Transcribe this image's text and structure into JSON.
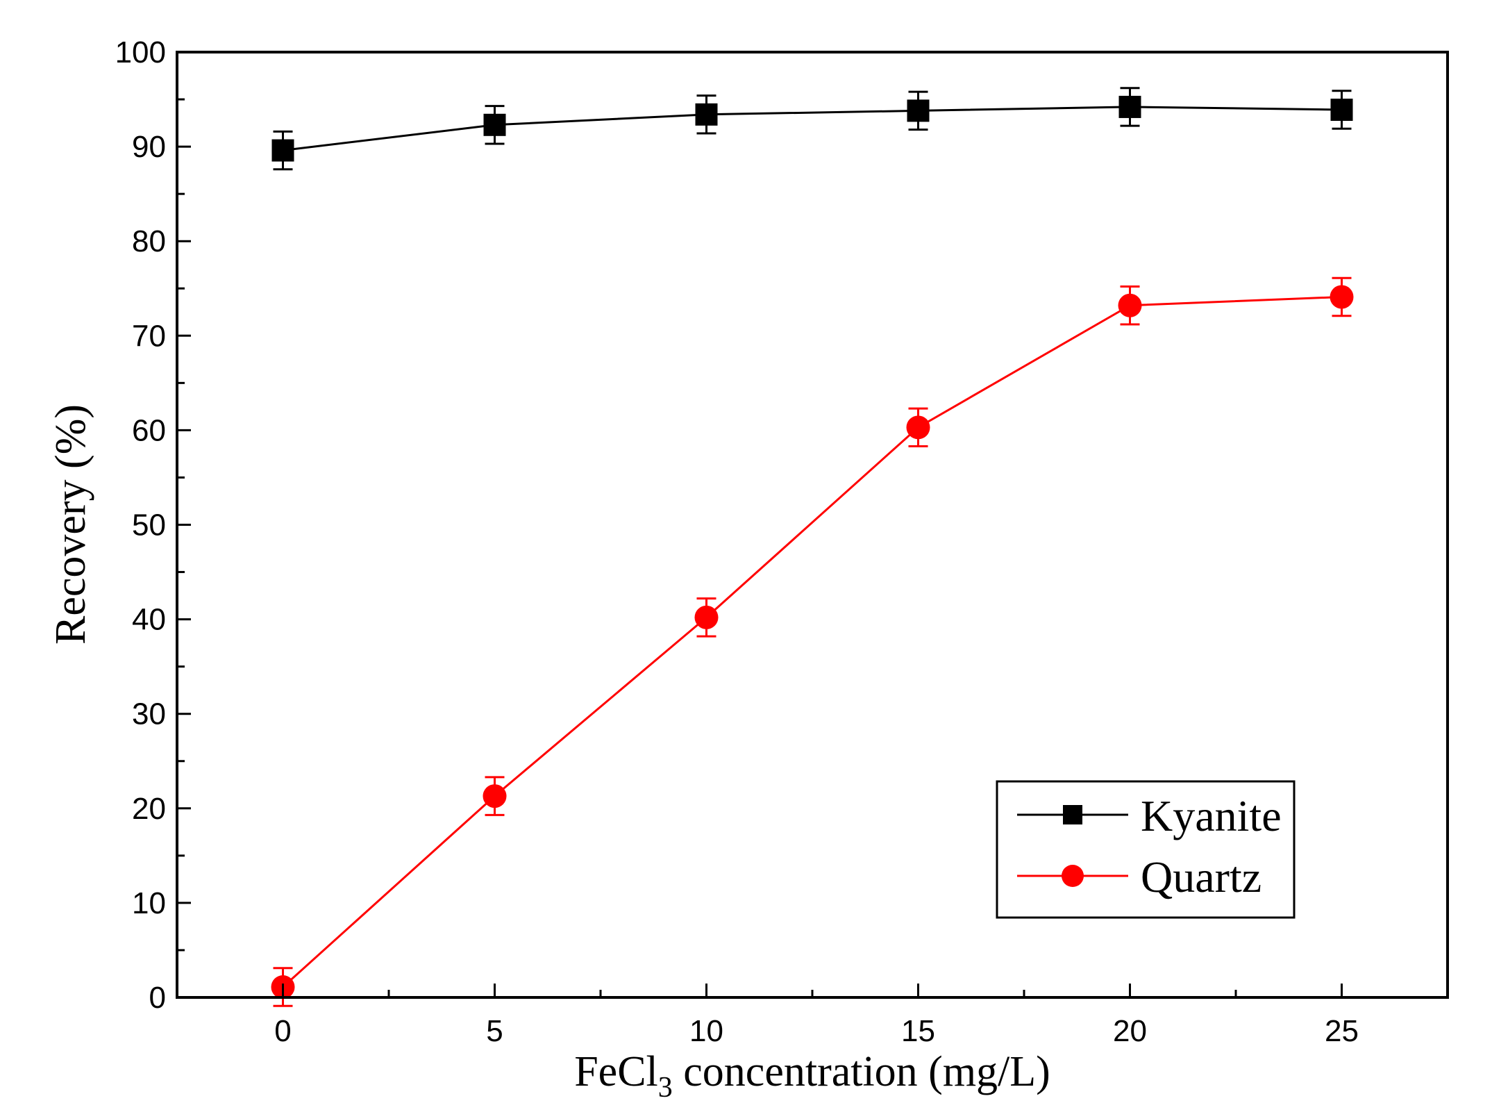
{
  "chart_data": {
    "type": "line",
    "title": "",
    "xlabel": {
      "prefix": "FeCl",
      "subscript": "3",
      "suffix": " concentration (mg/L)"
    },
    "ylabel": "Recovery (%)",
    "x": [
      0,
      5,
      10,
      15,
      20,
      25
    ],
    "xlim": [
      -2.5,
      27.5
    ],
    "ylim": [
      0,
      100
    ],
    "xticks": [
      0,
      5,
      10,
      15,
      20,
      25
    ],
    "xtick_labels": [
      "0",
      "5",
      "10",
      "15",
      "20",
      "25"
    ],
    "yticks": [
      0,
      10,
      20,
      30,
      40,
      50,
      60,
      70,
      80,
      90,
      100
    ],
    "ytick_labels": [
      "0",
      "10",
      "20",
      "30",
      "40",
      "50",
      "60",
      "70",
      "80",
      "90",
      "100"
    ],
    "grid": false,
    "legend_position": "bottom-right",
    "series": [
      {
        "name": "Kyanite",
        "marker": "square",
        "color": "#000000",
        "values": [
          89.6,
          92.3,
          93.4,
          93.8,
          94.2,
          93.9
        ],
        "errors": [
          2.0,
          2.0,
          2.0,
          2.0,
          2.0,
          2.0
        ]
      },
      {
        "name": "Quartz",
        "marker": "circle",
        "color": "#ff0000",
        "values": [
          1.1,
          21.3,
          40.2,
          60.3,
          73.2,
          74.1
        ],
        "errors": [
          2.0,
          2.0,
          2.0,
          2.0,
          2.0,
          2.0
        ]
      }
    ]
  }
}
